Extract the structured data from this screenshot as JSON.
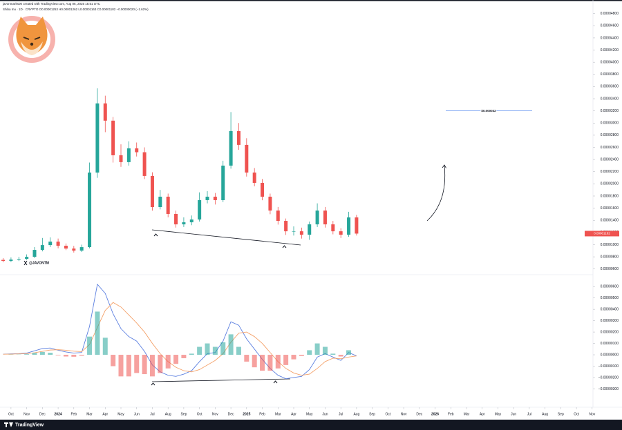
{
  "header": {
    "credit": "javonmarks00 created with TradingView.com, Aug 06, 2025 15:51 UTC"
  },
  "watermark": "@JAVONTM",
  "footer": {
    "brand": "TradingView"
  },
  "chart_data": [
    {
      "type": "candlestick",
      "title": "Shiba Inu · 1D · CRYPTO  O0.00001253 H0.00001262 L0.00001163 C0.00001182 −0.00000020 (−1.62%)",
      "up_color": "#26a69a",
      "down_color": "#ef5350",
      "x": [
        -0.5,
        0,
        0.5,
        1,
        1.5,
        2,
        2.5,
        3,
        3.5,
        4,
        4.5,
        5,
        5.5,
        6,
        6.5,
        7,
        7.5,
        8,
        8.5,
        9,
        9.5,
        10,
        10.5,
        11,
        11.5,
        12,
        12.5,
        13,
        13.5,
        14,
        14.5,
        15,
        15.5,
        16,
        16.5,
        17,
        17.5,
        18,
        18.5,
        19,
        19.5,
        20,
        20.5,
        21,
        21.5,
        22
      ],
      "open": [
        7.5e-06,
        7.32e-06,
        7.55e-06,
        7.66e-06,
        8e-06,
        9.14e-06,
        9.93e-06,
        1.05e-05,
        9.82e-06,
        9.36e-06,
        9.02e-06,
        9.59e-06,
        2.186e-05,
        3.323e-05,
        3.039e-05,
        2.47e-05,
        2.357e-05,
        2.584e-05,
        2.52e-05,
        2.13e-05,
        1.618e-05,
        1.789e-05,
        1.505e-05,
        1.334e-05,
        1.368e-05,
        1.414e-05,
        1.732e-05,
        1.789e-05,
        1.732e-05,
        2.3e-05,
        2.868e-05,
        2.641e-05,
        2.186e-05,
        2.016e-05,
        1.789e-05,
        1.561e-05,
        1.391e-05,
        1.22e-05,
        1.22e-05,
        1.164e-05,
        1.334e-05,
        1.561e-05,
        1.334e-05,
        1.22e-05,
        1.164e-05,
        1.448e-05
      ],
      "high": [
        7.8e-06,
        7.9e-06,
        8e-06,
        8.4e-06,
        9.6e-06,
        1.11e-05,
        1.12e-05,
        1.1e-05,
        1.02e-05,
        9.8e-06,
        1e-05,
        2.35e-05,
        3.57e-05,
        3.45e-05,
        3.1e-05,
        2.65e-05,
        2.7e-05,
        2.68e-05,
        2.6e-05,
        2.19e-05,
        1.9e-05,
        1.84e-05,
        1.56e-05,
        1.45e-05,
        1.48e-05,
        1.86e-05,
        1.88e-05,
        1.85e-05,
        2.38e-05,
        3.18e-05,
        3e-05,
        2.75e-05,
        2.26e-05,
        2.08e-05,
        1.84e-05,
        1.62e-05,
        1.43e-05,
        1.3e-05,
        1.28e-05,
        1.38e-05,
        1.68e-05,
        1.62e-05,
        1.39e-05,
        1.27e-05,
        1.54e-05,
        1.49e-05
      ],
      "low": [
        7.1e-06,
        7.15e-06,
        7.3e-06,
        7.5e-06,
        7.8e-06,
        8.9e-06,
        9.6e-06,
        9.4e-06,
        9.1e-06,
        8.7e-06,
        8.8e-06,
        9.4e-06,
        2.1e-05,
        2.85e-05,
        2.35e-05,
        2.28e-05,
        2.3e-05,
        2.45e-05,
        2.08e-05,
        1.56e-05,
        1.58e-05,
        1.45e-05,
        1.28e-05,
        1.29e-05,
        1.32e-05,
        1.38e-05,
        1.68e-05,
        1.66e-05,
        1.7e-05,
        2.25e-05,
        2.56e-05,
        2.12e-05,
        1.96e-05,
        1.73e-05,
        1.5e-05,
        1.33e-05,
        1.16e-05,
        1.15e-05,
        1.1e-05,
        1.08e-05,
        1.29e-05,
        1.28e-05,
        1.17e-05,
        1.11e-05,
        1.13e-05,
        1.15e-05
      ],
      "close": [
        7.32e-06,
        7.55e-06,
        7.66e-06,
        8e-06,
        9.14e-06,
        9.93e-06,
        1.05e-05,
        9.82e-06,
        9.36e-06,
        9.02e-06,
        9.59e-06,
        2.186e-05,
        3.323e-05,
        3.039e-05,
        2.47e-05,
        2.357e-05,
        2.584e-05,
        2.52e-05,
        2.13e-05,
        1.618e-05,
        1.789e-05,
        1.505e-05,
        1.334e-05,
        1.368e-05,
        1.414e-05,
        1.732e-05,
        1.789e-05,
        1.732e-05,
        2.3e-05,
        2.868e-05,
        2.641e-05,
        2.186e-05,
        2.016e-05,
        1.789e-05,
        1.561e-05,
        1.391e-05,
        1.22e-05,
        1.22e-05,
        1.164e-05,
        1.334e-05,
        1.561e-05,
        1.334e-05,
        1.22e-05,
        1.164e-05,
        1.448e-05,
        1.182e-05
      ],
      "last_price": {
        "value": 1.182e-05,
        "label": "0.00001182"
      },
      "target": {
        "value": 3.2e-05,
        "label": "$0.000032"
      },
      "xlim": [
        -0.7,
        38.9
      ],
      "xticks": [
        {
          "value": 0,
          "label": "Oct"
        },
        {
          "value": 1,
          "label": "Nov"
        },
        {
          "value": 2,
          "label": "Dec"
        },
        {
          "value": 3,
          "label": "2024"
        },
        {
          "value": 4,
          "label": "Feb"
        },
        {
          "value": 5,
          "label": "Mar"
        },
        {
          "value": 6,
          "label": "Apr"
        },
        {
          "value": 7,
          "label": "May"
        },
        {
          "value": 8,
          "label": "Jun"
        },
        {
          "value": 9,
          "label": "Jul"
        },
        {
          "value": 10,
          "label": "Aug"
        },
        {
          "value": 11,
          "label": "Sep"
        },
        {
          "value": 12,
          "label": "Oct"
        },
        {
          "value": 13,
          "label": "Nov"
        },
        {
          "value": 14,
          "label": "Dec"
        },
        {
          "value": 15,
          "label": "2025"
        },
        {
          "value": 16,
          "label": "Feb"
        },
        {
          "value": 17,
          "label": "Mar"
        },
        {
          "value": 18,
          "label": "Apr"
        },
        {
          "value": 19,
          "label": "May"
        },
        {
          "value": 20,
          "label": "Jun"
        },
        {
          "value": 21,
          "label": "Jul"
        },
        {
          "value": 22,
          "label": "Aug"
        },
        {
          "value": 23,
          "label": "Sep"
        },
        {
          "value": 24,
          "label": "Oct"
        },
        {
          "value": 25,
          "label": "Nov"
        },
        {
          "value": 26,
          "label": "Dec"
        },
        {
          "value": 27,
          "label": "2026"
        },
        {
          "value": 28,
          "label": "Feb"
        },
        {
          "value": 29,
          "label": "Mar"
        },
        {
          "value": 30,
          "label": "Apr"
        },
        {
          "value": 31,
          "label": "May"
        },
        {
          "value": 32,
          "label": "Jun"
        },
        {
          "value": 33,
          "label": "Jul"
        },
        {
          "value": 34,
          "label": "Aug"
        },
        {
          "value": 35,
          "label": "Sep"
        },
        {
          "value": 36,
          "label": "Oct"
        },
        {
          "value": 37,
          "label": "Nov"
        }
      ],
      "ylim": [
        5.4e-06,
        4.91e-05
      ],
      "yticks": [
        {
          "value": 6e-06,
          "label": "0.00000600"
        },
        {
          "value": 8e-06,
          "label": "0.00000800"
        },
        {
          "value": 1e-05,
          "label": "0.00001000"
        },
        {
          "value": 1.2e-05,
          "label": "0.00001200"
        },
        {
          "value": 1.4e-05,
          "label": "0.00001400"
        },
        {
          "value": 1.6e-05,
          "label": "0.00001600"
        },
        {
          "value": 1.8e-05,
          "label": "0.00001800"
        },
        {
          "value": 2e-05,
          "label": "0.00002000"
        },
        {
          "value": 2.2e-05,
          "label": "0.00002200"
        },
        {
          "value": 2.4e-05,
          "label": "0.00002400"
        },
        {
          "value": 2.6e-05,
          "label": "0.00002600"
        },
        {
          "value": 2.8e-05,
          "label": "0.00002800"
        },
        {
          "value": 3e-05,
          "label": "0.00003000"
        },
        {
          "value": 3.2e-05,
          "label": "0.00003200"
        },
        {
          "value": 3.4e-05,
          "label": "0.00003400"
        },
        {
          "value": 3.6e-05,
          "label": "0.00003600"
        },
        {
          "value": 3.8e-05,
          "label": "0.00003800"
        },
        {
          "value": 4e-05,
          "label": "0.00004000"
        },
        {
          "value": 4.2e-05,
          "label": "0.00004200"
        },
        {
          "value": 4.4e-05,
          "label": "0.00004400"
        },
        {
          "value": 4.6e-05,
          "label": "0.00004600"
        },
        {
          "value": 4.8e-05,
          "label": "0.00004800"
        }
      ]
    },
    {
      "type": "macd",
      "series": [
        {
          "kind": "line",
          "color": "#5b7fe0",
          "values": [
            5e-08,
            8e-08,
            1e-07,
            1.5e-07,
            3.5e-07,
            5.5e-07,
            6e-07,
            4e-07,
            2.5e-07,
            1.5e-07,
            2e-07,
            2.5e-06,
            6.2e-06,
            5.4e-06,
            3.6e-06,
            2.3e-06,
            1.6e-06,
            1.2e-06,
            3e-07,
            -9e-07,
            -1.5e-06,
            -1.8e-06,
            -1.9e-06,
            -1.7e-06,
            -1.4e-06,
            -6e-07,
            1e-07,
            2e-07,
            1.2e-06,
            2.9e-06,
            2.6e-06,
            1.4e-06,
            5e-07,
            -4e-07,
            -1.2e-06,
            -1.8e-06,
            -2.1e-06,
            -2e-06,
            -1.9e-06,
            -1.3e-06,
            -2e-07,
            1e-07,
            -2e-07,
            -5e-07,
            2e-07,
            -1e-07
          ]
        },
        {
          "kind": "line",
          "color": "#f4a26b",
          "values": [
            5e-08,
            6e-08,
            8e-08,
            1e-07,
            1.8e-07,
            3e-07,
            4.2e-07,
            4.5e-07,
            4e-07,
            3.2e-07,
            2.8e-07,
            9e-07,
            2.4e-06,
            3.9e-06,
            4.6e-06,
            4.2e-06,
            3.5e-06,
            2.8e-06,
            2e-06,
            1e-06,
            1e-07,
            -6e-07,
            -1.1e-06,
            -1.4e-06,
            -1.5e-06,
            -1.3e-06,
            -9e-07,
            -5e-07,
            1e-07,
            1.1e-06,
            1.9e-06,
            2e-06,
            1.6e-06,
            1e-06,
            2e-07,
            -6e-07,
            -1.2e-06,
            -1.6e-06,
            -1.8e-06,
            -1.7e-06,
            -1.2e-06,
            -6e-07,
            -3e-07,
            -3.5e-07,
            -2e-07,
            -1e-07
          ]
        },
        {
          "kind": "histogram",
          "up_color": "#26a69a",
          "down_color": "#ef5350",
          "values": [
            0,
            2e-08,
            2e-08,
            5e-08,
            1.7e-07,
            2.5e-07,
            1.8e-07,
            -5e-08,
            -1.5e-07,
            -1.7e-07,
            -8e-08,
            1.6e-06,
            3.8e-06,
            1.5e-06,
            -1e-06,
            -1.9e-06,
            -1.9e-06,
            -1.6e-06,
            -1.7e-06,
            -1.9e-06,
            -1.6e-06,
            -1.2e-06,
            -8e-07,
            -3e-07,
            1e-07,
            7e-07,
            1e-06,
            7e-07,
            1.1e-06,
            1.8e-06,
            7e-07,
            -6e-07,
            -1.1e-06,
            -1.4e-06,
            -1.4e-06,
            -1.2e-06,
            -9e-07,
            -4e-07,
            -1e-07,
            4e-07,
            1e-06,
            7e-07,
            1e-07,
            -1.5e-07,
            4e-07,
            0
          ]
        }
      ],
      "ylim": [
        -3.7e-06,
        6.8e-06
      ],
      "yticks": [
        {
          "value": 6e-06,
          "label": "0.00000600"
        },
        {
          "value": 5e-06,
          "label": "0.00000500"
        },
        {
          "value": 4e-06,
          "label": "0.00000400"
        },
        {
          "value": 3e-06,
          "label": "0.00000300"
        },
        {
          "value": 2e-06,
          "label": "0.00000200"
        },
        {
          "value": 1e-06,
          "label": "0.00000100"
        },
        {
          "value": 0,
          "label": "0.00000000"
        },
        {
          "value": -1e-06,
          "label": "−0.00000100"
        },
        {
          "value": -2e-06,
          "label": "−0.00000200"
        },
        {
          "value": -3e-06,
          "label": "−0.00000300"
        }
      ]
    }
  ]
}
